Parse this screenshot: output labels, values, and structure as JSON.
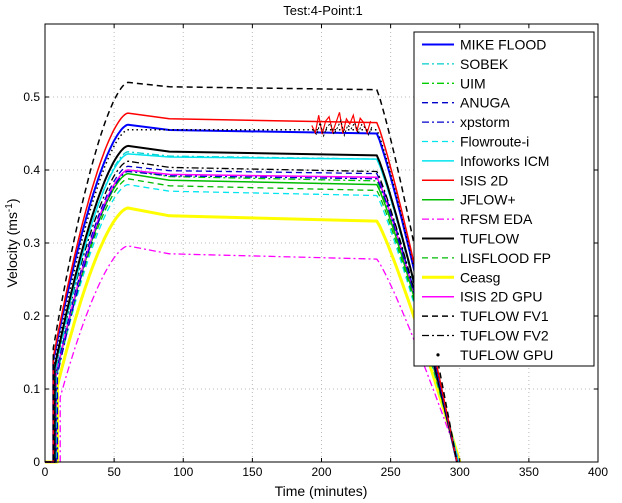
{
  "chart_data": {
    "type": "line",
    "title": "Test:4-Point:1",
    "xlabel": "Time (minutes)",
    "ylabel": "Velocity (ms",
    "ylabel_sup": "-1",
    "ylabel_close": ")",
    "xlim": [
      0,
      400
    ],
    "ylim": [
      0,
      0.6
    ],
    "xticks": [
      0,
      50,
      100,
      150,
      200,
      250,
      300,
      350,
      400
    ],
    "yticks": [
      0,
      0.1,
      0.2,
      0.3,
      0.4,
      0.5
    ],
    "grid": true,
    "legend_position": "top-right",
    "series": [
      {
        "name": "MIKE FLOOD",
        "color": "#0000ff",
        "dash": "solid",
        "width": 2,
        "start": 6,
        "plateau": [
          0.462,
          0.45
        ],
        "end": 298
      },
      {
        "name": "SOBEK",
        "color": "#00cccc",
        "dash": "dashdot",
        "width": 1.3,
        "start": 8,
        "plateau": [
          0.425,
          0.415
        ],
        "end": 298
      },
      {
        "name": "UIM",
        "color": "#00cc00",
        "dash": "dashdot",
        "width": 1.3,
        "start": 9,
        "plateau": [
          0.4,
          0.385
        ],
        "end": 299
      },
      {
        "name": "ANUGA",
        "color": "#0000cc",
        "dash": "dashed",
        "width": 1.3,
        "start": 8,
        "plateau": [
          0.405,
          0.395
        ],
        "end": 299
      },
      {
        "name": "xpstorm",
        "color": "#0000cc",
        "dash": "dashdot",
        "width": 1.3,
        "start": 9,
        "plateau": [
          0.398,
          0.388
        ],
        "end": 299
      },
      {
        "name": "Flowroute-i",
        "color": "#00e5ee",
        "dash": "dashed",
        "width": 1.3,
        "start": 8,
        "plateau": [
          0.38,
          0.365
        ],
        "end": 299
      },
      {
        "name": "Infoworks ICM",
        "color": "#00e5ee",
        "dash": "solid",
        "width": 1.5,
        "start": 7,
        "plateau": [
          0.422,
          0.415
        ],
        "end": 299
      },
      {
        "name": "ISIS 2D",
        "color": "#ff0000",
        "dash": "solid",
        "width": 1.5,
        "start": 6,
        "plateau": [
          0.478,
          0.465
        ],
        "end": 298
      },
      {
        "name": "JFLOW+",
        "color": "#00bb00",
        "dash": "solid",
        "width": 1.5,
        "start": 8,
        "plateau": [
          0.395,
          0.38
        ],
        "end": 299
      },
      {
        "name": "RFSM EDA",
        "color": "#ff00ff",
        "dash": "dashdot",
        "width": 1.3,
        "start": 11,
        "plateau": [
          0.296,
          0.278
        ],
        "end": 300
      },
      {
        "name": "TUFLOW",
        "color": "#000000",
        "dash": "solid",
        "width": 2,
        "start": 7,
        "plateau": [
          0.433,
          0.42
        ],
        "end": 298
      },
      {
        "name": "LISFLOOD FP",
        "color": "#00bb00",
        "dash": "dashed",
        "width": 1.3,
        "start": 8,
        "plateau": [
          0.388,
          0.372
        ],
        "end": 299
      },
      {
        "name": "Ceasg",
        "color": "#ffff00",
        "dash": "solid",
        "width": 3,
        "start": 9,
        "plateau": [
          0.348,
          0.33
        ],
        "end": 300
      },
      {
        "name": "ISIS 2D GPU",
        "color": "#ff00ff",
        "dash": "solid",
        "width": 1.5,
        "start": 8,
        "plateau": [
          0.4,
          0.39
        ],
        "end": 299
      },
      {
        "name": "TUFLOW FV1",
        "color": "#000000",
        "dash": "dashed",
        "width": 1.5,
        "start": 6,
        "plateau": [
          0.52,
          0.51
        ],
        "end": 298
      },
      {
        "name": "TUFLOW FV2",
        "color": "#000000",
        "dash": "dashdot",
        "width": 1.3,
        "start": 7,
        "plateau": [
          0.412,
          0.398
        ],
        "end": 299
      },
      {
        "name": "TUFLOW GPU",
        "color": "#000000",
        "dash": "dotted",
        "width": 1.5,
        "start": 7,
        "plateau": [
          0.455,
          0.455
        ],
        "end": 298
      }
    ]
  }
}
